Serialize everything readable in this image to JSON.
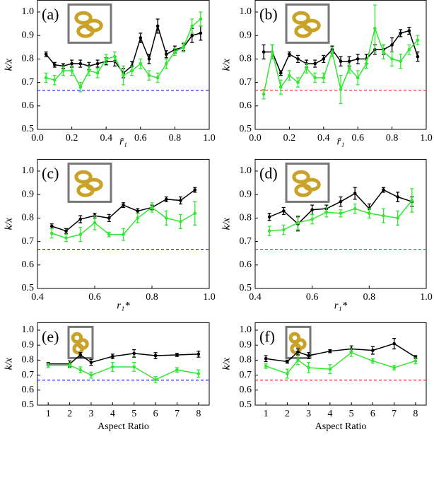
{
  "chart_data": [
    {
      "type": "line",
      "panel_label": "(a)",
      "xlabel": "r̃₁",
      "ylabel": "k/x",
      "xlim": [
        0,
        1
      ],
      "xticks": [
        {
          "value": 0,
          "label": "0.0"
        },
        0.2,
        0.4,
        0.6,
        0.8,
        {
          "value": 1,
          "label": "1.0"
        }
      ],
      "ylim": [
        0.5,
        1.05
      ],
      "yticks": [
        0.5,
        0.6,
        0.7,
        0.8,
        0.9,
        {
          "value": 1,
          "label": "1.0"
        }
      ],
      "x": [
        0.05,
        0.1,
        0.15,
        0.2,
        0.25,
        0.3,
        0.35,
        0.4,
        0.45,
        0.5,
        0.55,
        0.6,
        0.65,
        0.7,
        0.75,
        0.8,
        0.85,
        0.9,
        0.95
      ],
      "series": [
        {
          "color": "#000000",
          "values": [
            0.82,
            0.775,
            0.77,
            0.78,
            0.78,
            0.77,
            0.78,
            0.79,
            0.79,
            0.74,
            0.77,
            0.89,
            0.8,
            0.94,
            0.82,
            0.84,
            0.85,
            0.9,
            0.91
          ],
          "errors": [
            0.01,
            0.01,
            0.01,
            0.015,
            0.015,
            0.015,
            0.015,
            0.015,
            0.02,
            0.02,
            0.02,
            0.02,
            0.02,
            0.03,
            0.015,
            0.015,
            0.015,
            0.03,
            0.03
          ]
        },
        {
          "color": "#33e833",
          "values": [
            0.72,
            0.71,
            0.75,
            0.75,
            0.68,
            0.75,
            0.74,
            0.8,
            0.81,
            0.73,
            0.75,
            0.78,
            0.73,
            0.72,
            0.78,
            0.83,
            0.85,
            0.94,
            0.97
          ],
          "errors": [
            0.02,
            0.02,
            0.02,
            0.02,
            0.02,
            0.02,
            0.02,
            0.02,
            0.02,
            0.04,
            0.02,
            0.02,
            0.02,
            0.02,
            0.02,
            0.015,
            0.02,
            0.03,
            0.03
          ]
        }
      ],
      "hline": {
        "value": 0.667,
        "color": "#1a1aff"
      }
    },
    {
      "type": "line",
      "panel_label": "(b)",
      "xlabel": "r̃₁",
      "ylabel": "k/x",
      "xlim": [
        0,
        1
      ],
      "xticks": [
        {
          "value": 0,
          "label": "0.0"
        },
        0.2,
        0.4,
        0.6,
        0.8,
        {
          "value": 1,
          "label": "1.0"
        }
      ],
      "ylim": [
        0.5,
        1.05
      ],
      "yticks": [
        0.5,
        0.6,
        0.7,
        0.8,
        0.9,
        {
          "value": 1,
          "label": "1.0"
        }
      ],
      "x": [
        0.05,
        0.1,
        0.15,
        0.2,
        0.25,
        0.3,
        0.35,
        0.4,
        0.45,
        0.5,
        0.55,
        0.6,
        0.65,
        0.7,
        0.75,
        0.8,
        0.85,
        0.9,
        0.95
      ],
      "series": [
        {
          "color": "#000000",
          "values": [
            0.83,
            0.83,
            0.74,
            0.82,
            0.8,
            0.78,
            0.78,
            0.8,
            0.84,
            0.79,
            0.79,
            0.8,
            0.8,
            0.84,
            0.84,
            0.86,
            0.91,
            0.92,
            0.81
          ],
          "errors": [
            0.03,
            0.03,
            0.01,
            0.01,
            0.015,
            0.015,
            0.015,
            0.015,
            0.015,
            0.02,
            0.02,
            0.02,
            0.02,
            0.02,
            0.02,
            0.03,
            0.015,
            0.015,
            0.02
          ]
        },
        {
          "color": "#33e833",
          "values": [
            0.65,
            0.83,
            0.68,
            0.73,
            0.7,
            0.76,
            0.72,
            0.72,
            0.83,
            0.67,
            0.76,
            0.72,
            0.78,
            0.93,
            0.83,
            0.8,
            0.79,
            0.84,
            0.88
          ],
          "errors": [
            0.02,
            0.03,
            0.03,
            0.02,
            0.02,
            0.02,
            0.02,
            0.02,
            0.02,
            0.06,
            0.02,
            0.03,
            0.02,
            0.1,
            0.03,
            0.03,
            0.03,
            0.02,
            0.02
          ]
        }
      ],
      "hline": {
        "value": 0.667,
        "color": "#ff2020"
      }
    },
    {
      "type": "line",
      "panel_label": "(c)",
      "xlabel": "r₁*",
      "ylabel": "k/x",
      "xlim": [
        0.4,
        1
      ],
      "xticks": [
        0.4,
        0.6,
        0.8,
        {
          "value": 1,
          "label": "1.0"
        }
      ],
      "ylim": [
        0.5,
        1.05
      ],
      "yticks": [
        0.5,
        0.6,
        0.7,
        0.8,
        0.9,
        {
          "value": 1,
          "label": "1.0"
        }
      ],
      "x": [
        0.45,
        0.5,
        0.55,
        0.6,
        0.65,
        0.7,
        0.75,
        0.8,
        0.85,
        0.9,
        0.95
      ],
      "series": [
        {
          "color": "#000000",
          "values": [
            0.765,
            0.745,
            0.795,
            0.81,
            0.8,
            0.855,
            0.83,
            0.845,
            0.88,
            0.875,
            0.92
          ],
          "errors": [
            0.01,
            0.01,
            0.015,
            0.01,
            0.015,
            0.01,
            0.01,
            0.01,
            0.01,
            0.015,
            0.01
          ]
        },
        {
          "color": "#33e833",
          "values": [
            0.735,
            0.715,
            0.73,
            0.78,
            0.73,
            0.73,
            0.8,
            0.845,
            0.8,
            0.785,
            0.82
          ],
          "errors": [
            0.02,
            0.015,
            0.03,
            0.03,
            0.01,
            0.025,
            0.02,
            0.02,
            0.03,
            0.03,
            0.05
          ]
        }
      ],
      "hline": {
        "value": 0.667,
        "color": "#1a1aff"
      }
    },
    {
      "type": "line",
      "panel_label": "(d)",
      "xlabel": "r₁*",
      "ylabel": "k/x",
      "xlim": [
        0.4,
        1
      ],
      "xticks": [
        0.4,
        0.6,
        0.8,
        {
          "value": 1,
          "label": "1.0"
        }
      ],
      "ylim": [
        0.5,
        1.05
      ],
      "yticks": [
        0.5,
        0.6,
        0.7,
        0.8,
        0.9,
        {
          "value": 1,
          "label": "1.0"
        }
      ],
      "x": [
        0.45,
        0.5,
        0.55,
        0.6,
        0.65,
        0.7,
        0.75,
        0.8,
        0.85,
        0.9,
        0.95
      ],
      "series": [
        {
          "color": "#000000",
          "values": [
            0.805,
            0.83,
            0.775,
            0.835,
            0.84,
            0.87,
            0.905,
            0.84,
            0.92,
            0.89,
            0.87
          ],
          "errors": [
            0.015,
            0.015,
            0.03,
            0.02,
            0.015,
            0.02,
            0.025,
            0.02,
            0.01,
            0.02,
            0.02
          ]
        },
        {
          "color": "#33e833",
          "values": [
            0.745,
            0.75,
            0.78,
            0.795,
            0.825,
            0.82,
            0.84,
            0.82,
            0.81,
            0.8,
            0.875
          ],
          "errors": [
            0.02,
            0.02,
            0.03,
            0.02,
            0.02,
            0.015,
            0.02,
            0.02,
            0.03,
            0.03,
            0.05
          ]
        }
      ],
      "hline": {
        "value": 0.667,
        "color": "#ff2020"
      }
    },
    {
      "type": "line",
      "panel_label": "(e)",
      "xlabel": "Aspect Ratio",
      "ylabel": "k/x",
      "xlim": [
        0.5,
        8.5
      ],
      "xticks": [
        1,
        2,
        3,
        4,
        5,
        6,
        7,
        8
      ],
      "ylim": [
        0.5,
        1.05
      ],
      "yticks": [
        0.5,
        0.6,
        0.7,
        0.8,
        0.9,
        {
          "value": 1,
          "label": "1.0"
        }
      ],
      "x": [
        1,
        2,
        2.5,
        3,
        4,
        5,
        6,
        7,
        8
      ],
      "series": [
        {
          "color": "#000000",
          "values": [
            0.775,
            0.775,
            0.835,
            0.785,
            0.825,
            0.845,
            0.83,
            0.835,
            0.84
          ],
          "errors": [
            0.01,
            0.02,
            0.015,
            0.02,
            0.015,
            0.025,
            0.02,
            0.01,
            0.02
          ]
        },
        {
          "color": "#33e833",
          "values": [
            0.765,
            0.765,
            0.735,
            0.7,
            0.755,
            0.755,
            0.67,
            0.735,
            0.71
          ],
          "errors": [
            0.015,
            0.015,
            0.02,
            0.02,
            0.03,
            0.03,
            0.02,
            0.015,
            0.025
          ]
        }
      ],
      "hline": {
        "value": 0.667,
        "color": "#1a1aff"
      }
    },
    {
      "type": "line",
      "panel_label": "(f)",
      "xlabel": "Aspect Ratio",
      "ylabel": "k/x",
      "xlim": [
        0.5,
        8.5
      ],
      "xticks": [
        1,
        2,
        3,
        4,
        5,
        6,
        7,
        8
      ],
      "ylim": [
        0.5,
        1.05
      ],
      "yticks": [
        0.5,
        0.6,
        0.7,
        0.8,
        0.9,
        {
          "value": 1,
          "label": "1.0"
        }
      ],
      "x": [
        1,
        2,
        2.5,
        3,
        4,
        5,
        6,
        7,
        8
      ],
      "series": [
        {
          "color": "#000000",
          "values": [
            0.81,
            0.79,
            0.855,
            0.83,
            0.86,
            0.875,
            0.865,
            0.91,
            0.82
          ],
          "errors": [
            0.02,
            0.01,
            0.02,
            0.02,
            0.01,
            0.02,
            0.025,
            0.035,
            0.01
          ]
        },
        {
          "color": "#33e833",
          "values": [
            0.76,
            0.71,
            0.8,
            0.75,
            0.74,
            0.85,
            0.795,
            0.75,
            0.795
          ],
          "errors": [
            0.015,
            0.03,
            0.03,
            0.035,
            0.03,
            0.025,
            0.015,
            0.015,
            0.02
          ]
        }
      ],
      "hline": {
        "value": 0.667,
        "color": "#ff2020"
      }
    }
  ]
}
